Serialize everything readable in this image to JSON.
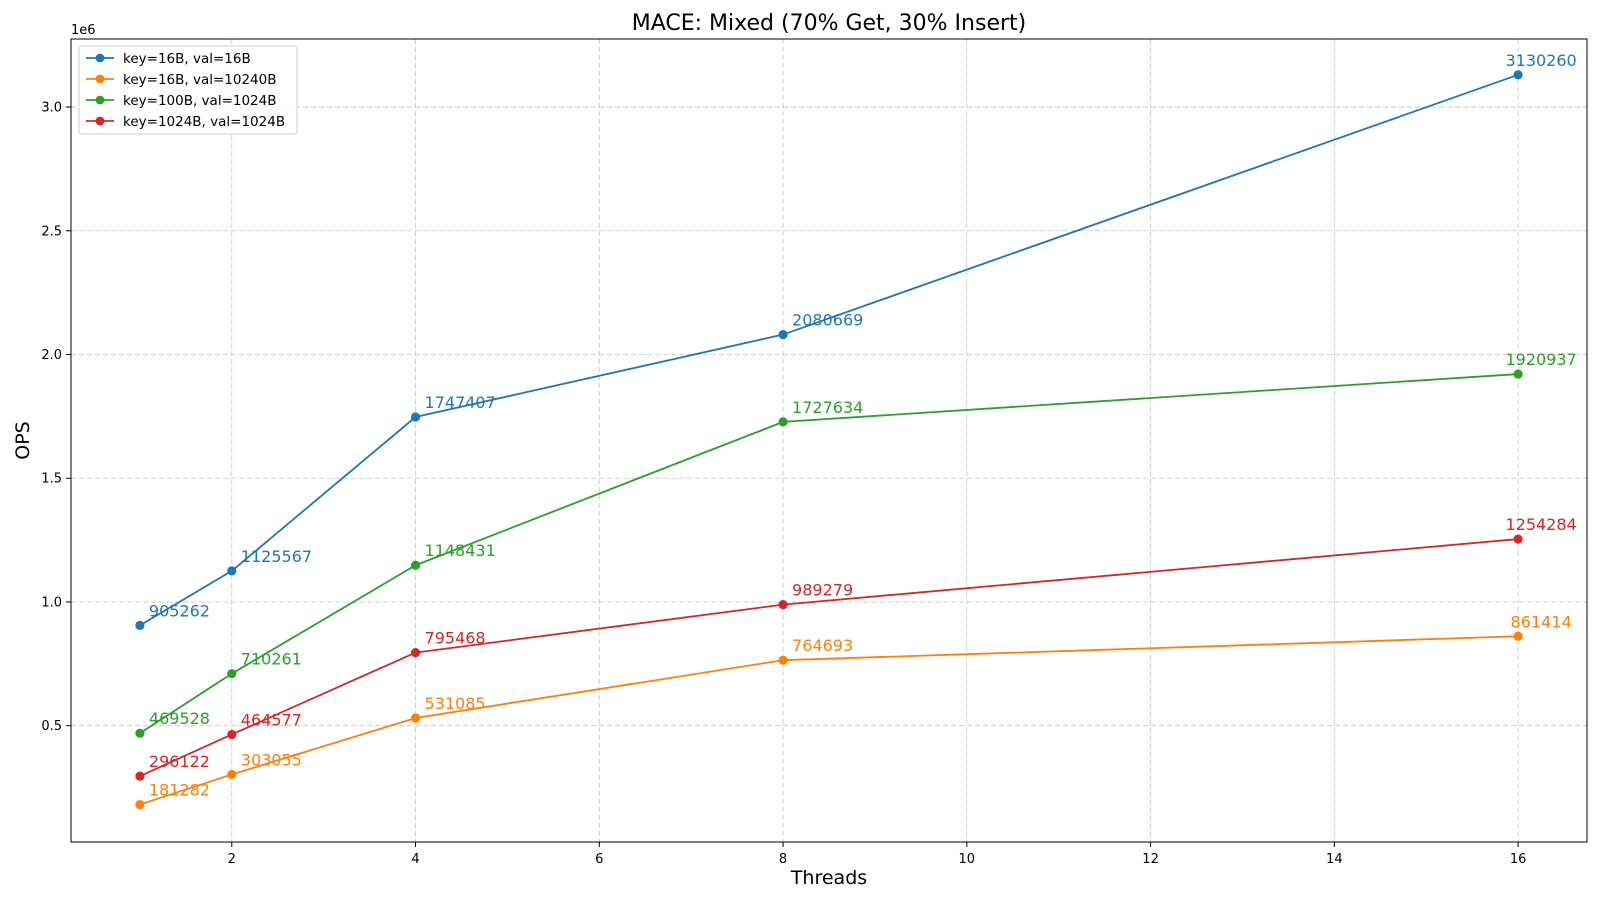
{
  "chart_data": {
    "type": "line",
    "title": "MACE: Mixed (70% Get, 30% Insert)",
    "xlabel": "Threads",
    "ylabel": "OPS",
    "y_offset_text": "1e6",
    "x": [
      1,
      2,
      4,
      8,
      16
    ],
    "xlim": [
      0.25,
      16.75
    ],
    "ylim": [
      30000,
      3275000
    ],
    "x_ticks": [
      2,
      4,
      6,
      8,
      10,
      12,
      14,
      16
    ],
    "y_ticks": [
      0.5,
      1.0,
      1.5,
      2.0,
      2.5,
      3.0
    ],
    "y_tick_labels": [
      "0.5",
      "1.0",
      "1.5",
      "2.0",
      "2.5",
      "3.0"
    ],
    "y_tick_scale": 1000000,
    "grid": true,
    "legend_position": "top-left",
    "series": [
      {
        "name": "key=16B, val=16B",
        "color": "#1f77b4",
        "values": [
          905262,
          1125567,
          1747407,
          2080669,
          3130260
        ]
      },
      {
        "name": "key=16B, val=10240B",
        "color": "#ff7f0e",
        "values": [
          181282,
          303055,
          531085,
          764693,
          861414
        ]
      },
      {
        "name": "key=100B, val=1024B",
        "color": "#2ca02c",
        "values": [
          469528,
          710261,
          1148431,
          1727634,
          1920937
        ]
      },
      {
        "name": "key=1024B, val=1024B",
        "color": "#d62728",
        "values": [
          296122,
          464577,
          795468,
          989279,
          1254284
        ]
      }
    ]
  }
}
